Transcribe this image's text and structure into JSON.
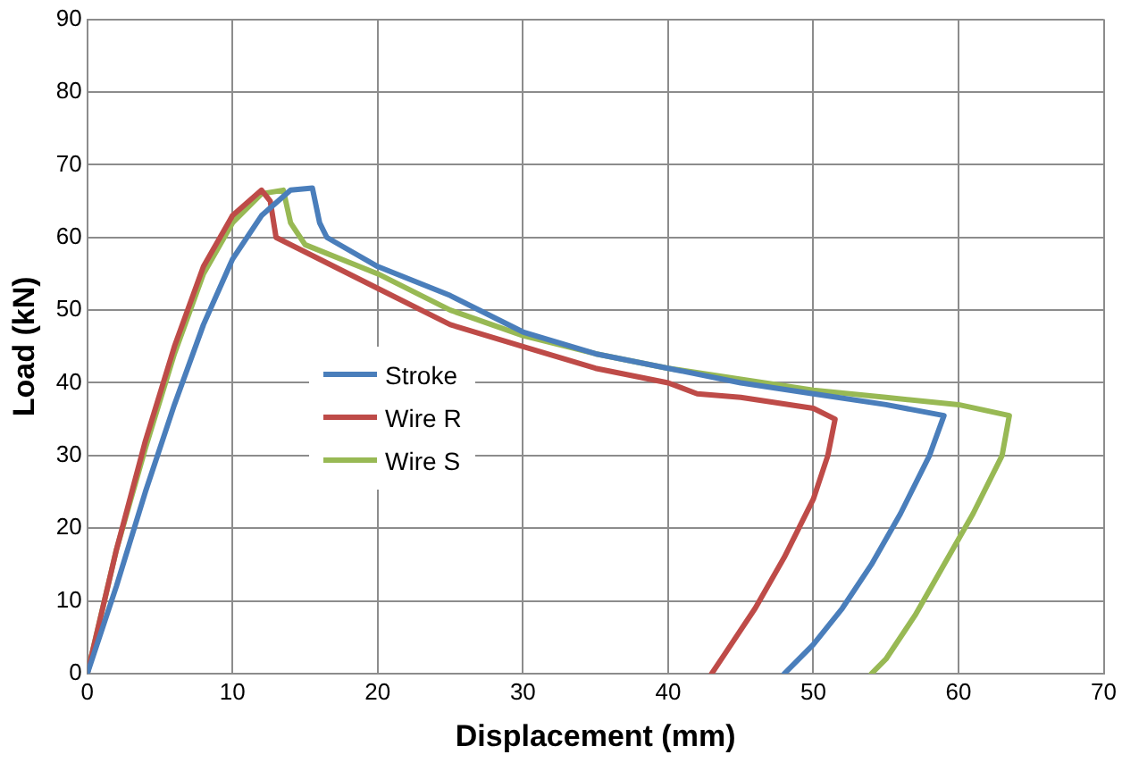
{
  "chart_data": {
    "type": "line",
    "xlabel": "Displacement (mm)",
    "ylabel": "Load (kN)",
    "xlim": [
      0,
      70
    ],
    "ylim": [
      0,
      90
    ],
    "xticks": [
      0,
      10,
      20,
      30,
      40,
      50,
      60,
      70
    ],
    "yticks": [
      0,
      10,
      20,
      30,
      40,
      50,
      60,
      70,
      80,
      90
    ],
    "grid": true,
    "legend": "center",
    "marker": "none",
    "line_style": "solid",
    "series": [
      {
        "name": "Stroke",
        "color": "#4a7ebb",
        "x": [
          0,
          2,
          4,
          6,
          8,
          10,
          12,
          14,
          15.5,
          16,
          16.5,
          20,
          25,
          30,
          35,
          40,
          45,
          50,
          55,
          59,
          58,
          56,
          54,
          52,
          50,
          48
        ],
        "values": [
          0,
          12,
          25,
          37,
          48,
          57,
          63,
          66.5,
          66.8,
          62,
          60,
          56,
          52,
          47,
          44,
          42,
          40,
          38.5,
          37,
          35.5,
          30,
          22,
          15,
          9,
          4,
          0
        ]
      },
      {
        "name": "Wire R",
        "color": "#be4b48",
        "x": [
          0,
          2,
          4,
          6,
          8,
          10,
          12,
          12.6,
          13,
          15,
          20,
          25,
          30,
          35,
          40,
          42,
          45,
          50,
          51.5,
          51,
          50,
          48,
          46,
          44,
          43
        ],
        "values": [
          0,
          17,
          32,
          45,
          56,
          63,
          66.5,
          65,
          60,
          58,
          53,
          48,
          45,
          42,
          40,
          38.5,
          38,
          36.5,
          35,
          30,
          24,
          16,
          9,
          3,
          0
        ]
      },
      {
        "name": "Wire S",
        "color": "#98b954",
        "x": [
          0,
          2,
          4,
          6,
          8,
          10,
          12,
          13.5,
          14,
          15,
          20,
          25,
          30,
          35,
          40,
          45,
          50,
          55,
          60,
          63.5,
          63,
          61,
          59,
          57,
          55,
          54
        ],
        "values": [
          0,
          17,
          31,
          44,
          55,
          62,
          66,
          66.5,
          62,
          59,
          55,
          50,
          46.5,
          44,
          42,
          40.5,
          39,
          38,
          37,
          35.5,
          30,
          22,
          15,
          8,
          2,
          0
        ]
      }
    ]
  }
}
